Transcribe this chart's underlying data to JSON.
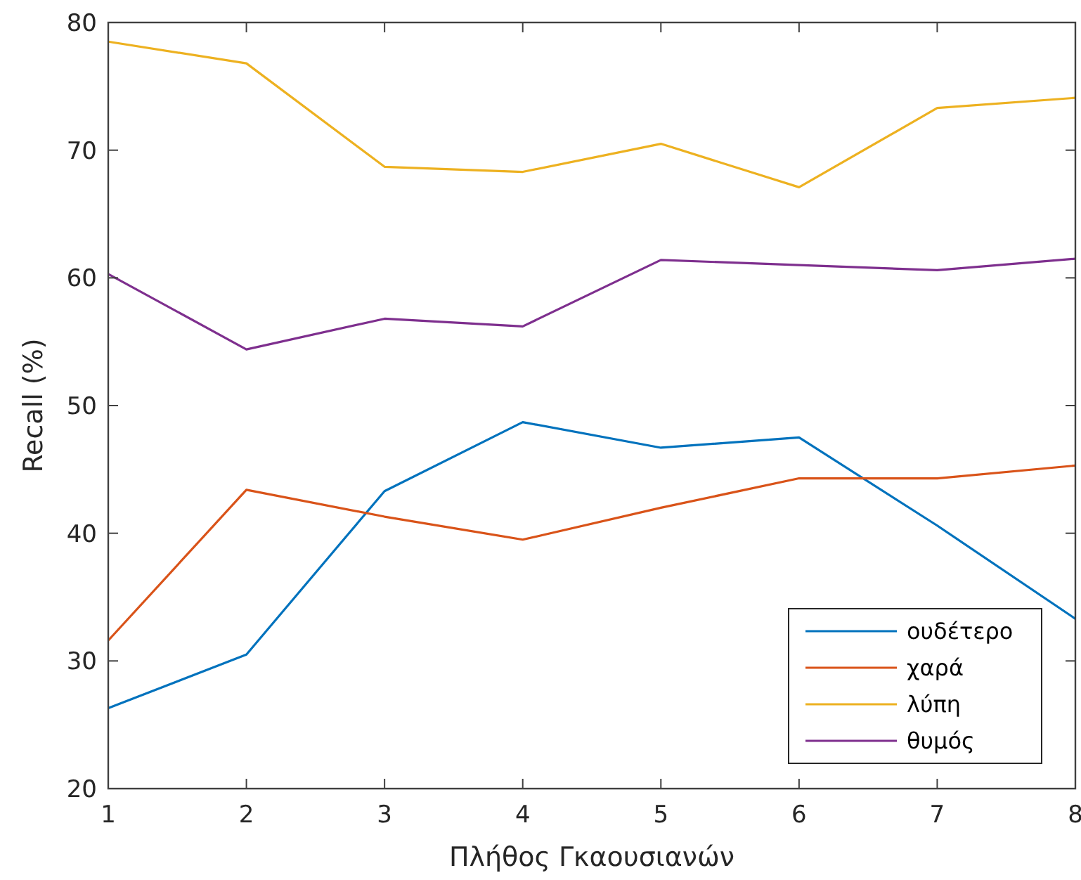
{
  "chart_data": {
    "type": "line",
    "xlabel": "Πλήθος Γκαουσιανών",
    "ylabel": "Recall (%)",
    "x": [
      1,
      2,
      3,
      4,
      5,
      6,
      7,
      8
    ],
    "xlim": [
      1,
      8
    ],
    "xticks": [
      1,
      2,
      3,
      4,
      5,
      6,
      7,
      8
    ],
    "ylim": [
      20,
      80
    ],
    "yticks": [
      20,
      30,
      40,
      50,
      60,
      70,
      80
    ],
    "grid": false,
    "legend": "bottom right",
    "line_style": "solid",
    "marker": "none",
    "series": [
      {
        "name": "ουδέτερο",
        "color": "#0072bd",
        "values": [
          26.3,
          30.5,
          43.3,
          48.7,
          46.7,
          47.5,
          40.6,
          33.3
        ]
      },
      {
        "name": "χαρά",
        "color": "#d95319",
        "values": [
          31.6,
          43.4,
          41.3,
          39.5,
          42.0,
          44.3,
          44.3,
          45.3
        ]
      },
      {
        "name": "λύπη",
        "color": "#edb120",
        "values": [
          78.5,
          76.8,
          68.7,
          68.3,
          70.5,
          67.1,
          73.3,
          74.1
        ]
      },
      {
        "name": "θυμός",
        "color": "#7e2f8e",
        "values": [
          60.3,
          54.4,
          56.8,
          56.2,
          61.4,
          61.0,
          60.6,
          61.5
        ]
      }
    ]
  }
}
